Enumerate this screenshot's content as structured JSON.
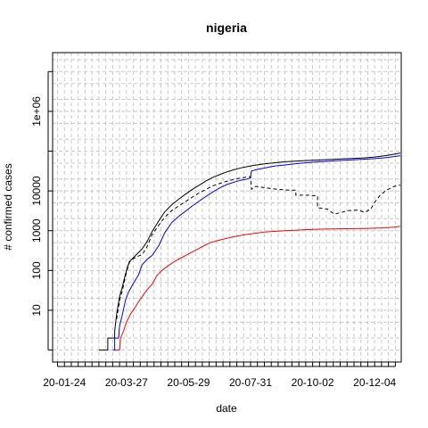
{
  "chart_data": {
    "type": "line",
    "title": "nigeria",
    "xlabel": "date",
    "ylabel": "# confirmed cases",
    "log_y": true,
    "grid": true,
    "x_ticks": [
      "20-01-24",
      "20-03-27",
      "20-05-29",
      "20-07-31",
      "20-10-02",
      "20-12-04"
    ],
    "y_ticks": [
      "10",
      "100",
      "1000",
      "10000",
      "1e+06"
    ],
    "xlim": [
      "2020-01-12",
      "2020-12-31"
    ],
    "ylim": [
      0.5,
      30000000
    ],
    "series": [
      {
        "color": "#000000",
        "linetype": "solid",
        "points": [
          [
            "2020-02-28",
            1
          ],
          [
            "2020-03-08",
            1
          ],
          [
            "2020-03-08",
            2
          ],
          [
            "2020-03-15",
            2
          ],
          [
            "2020-03-15",
            3
          ],
          [
            "2020-03-17",
            8
          ],
          [
            "2020-03-20",
            22
          ],
          [
            "2020-03-23",
            40
          ],
          [
            "2020-03-25",
            65
          ],
          [
            "2020-03-27",
            100
          ],
          [
            "2020-03-30",
            170
          ],
          [
            "2020-04-03",
            210
          ],
          [
            "2020-04-08",
            280
          ],
          [
            "2020-04-12",
            350
          ],
          [
            "2020-04-17",
            540
          ],
          [
            "2020-04-22",
            950
          ],
          [
            "2020-04-29",
            1800
          ],
          [
            "2020-05-05",
            3000
          ],
          [
            "2020-05-12",
            4500
          ],
          [
            "2020-05-19",
            6200
          ],
          [
            "2020-05-26",
            8300
          ],
          [
            "2020-06-02",
            11000
          ],
          [
            "2020-06-09",
            14000
          ],
          [
            "2020-06-16",
            18000
          ],
          [
            "2020-06-23",
            22000
          ],
          [
            "2020-06-30",
            26000
          ],
          [
            "2020-07-07",
            30000
          ],
          [
            "2020-07-14",
            34000
          ],
          [
            "2020-07-21",
            38000
          ],
          [
            "2020-07-28",
            41000
          ],
          [
            "2020-08-04",
            44000
          ],
          [
            "2020-08-14",
            48000
          ],
          [
            "2020-08-24",
            51000
          ],
          [
            "2020-09-04",
            54000
          ],
          [
            "2020-09-14",
            56000
          ],
          [
            "2020-09-24",
            58000
          ],
          [
            "2020-10-04",
            59500
          ],
          [
            "2020-10-14",
            61000
          ],
          [
            "2020-10-24",
            62500
          ],
          [
            "2020-11-04",
            64500
          ],
          [
            "2020-11-14",
            66000
          ],
          [
            "2020-11-24",
            68000
          ],
          [
            "2020-12-04",
            71000
          ],
          [
            "2020-12-14",
            76000
          ],
          [
            "2020-12-24",
            84000
          ],
          [
            "2020-12-30",
            90000
          ]
        ]
      },
      {
        "color": "#0000ff",
        "linetype": "solid",
        "points": [
          [
            "2020-03-13",
            1
          ],
          [
            "2020-03-15",
            1
          ],
          [
            "2020-03-15",
            2
          ],
          [
            "2020-03-19",
            2
          ],
          [
            "2020-03-20",
            4
          ],
          [
            "2020-03-23",
            8
          ],
          [
            "2020-03-26",
            18
          ],
          [
            "2020-03-29",
            28
          ],
          [
            "2020-04-03",
            48
          ],
          [
            "2020-04-08",
            75
          ],
          [
            "2020-04-12",
            140
          ],
          [
            "2020-04-17",
            190
          ],
          [
            "2020-04-22",
            240
          ],
          [
            "2020-04-29",
            430
          ],
          [
            "2020-05-05",
            900
          ],
          [
            "2020-05-12",
            1600
          ],
          [
            "2020-05-19",
            2300
          ],
          [
            "2020-05-26",
            3100
          ],
          [
            "2020-06-02",
            4200
          ],
          [
            "2020-06-09",
            5600
          ],
          [
            "2020-06-16",
            7300
          ],
          [
            "2020-06-23",
            9500
          ],
          [
            "2020-06-30",
            12000
          ],
          [
            "2020-07-07",
            14500
          ],
          [
            "2020-07-14",
            16500
          ],
          [
            "2020-07-21",
            18500
          ],
          [
            "2020-07-28",
            20000
          ],
          [
            "2020-07-31",
            21500
          ],
          [
            "2020-08-01",
            32000
          ],
          [
            "2020-08-08",
            35000
          ],
          [
            "2020-08-15",
            38000
          ],
          [
            "2020-08-24",
            42000
          ],
          [
            "2020-09-04",
            45000
          ],
          [
            "2020-09-14",
            48000
          ],
          [
            "2020-09-24",
            51000
          ],
          [
            "2020-10-04",
            53000
          ],
          [
            "2020-10-14",
            55000
          ],
          [
            "2020-10-24",
            57000
          ],
          [
            "2020-11-04",
            59000
          ],
          [
            "2020-11-14",
            61000
          ],
          [
            "2020-11-24",
            63000
          ],
          [
            "2020-12-04",
            65000
          ],
          [
            "2020-12-14",
            68000
          ],
          [
            "2020-12-24",
            73000
          ],
          [
            "2020-12-30",
            77000
          ]
        ]
      },
      {
        "color": "#ff0000",
        "linetype": "solid",
        "points": [
          [
            "2020-03-15",
            1
          ],
          [
            "2020-03-20",
            1
          ],
          [
            "2020-03-21",
            2
          ],
          [
            "2020-03-24",
            3
          ],
          [
            "2020-03-27",
            5
          ],
          [
            "2020-03-31",
            8
          ],
          [
            "2020-04-04",
            11
          ],
          [
            "2020-04-08",
            16
          ],
          [
            "2020-04-12",
            22
          ],
          [
            "2020-04-17",
            33
          ],
          [
            "2020-04-22",
            45
          ],
          [
            "2020-04-27",
            75
          ],
          [
            "2020-05-02",
            100
          ],
          [
            "2020-05-08",
            130
          ],
          [
            "2020-05-15",
            170
          ],
          [
            "2020-05-22",
            210
          ],
          [
            "2020-05-29",
            260
          ],
          [
            "2020-06-06",
            330
          ],
          [
            "2020-06-13",
            410
          ],
          [
            "2020-06-20",
            500
          ],
          [
            "2020-06-27",
            560
          ],
          [
            "2020-07-04",
            620
          ],
          [
            "2020-07-11",
            680
          ],
          [
            "2020-07-18",
            740
          ],
          [
            "2020-07-25",
            790
          ],
          [
            "2020-08-04",
            860
          ],
          [
            "2020-08-14",
            920
          ],
          [
            "2020-08-24",
            960
          ],
          [
            "2020-09-04",
            1000
          ],
          [
            "2020-09-14",
            1030
          ],
          [
            "2020-09-24",
            1060
          ],
          [
            "2020-10-04",
            1080
          ],
          [
            "2020-10-14",
            1100
          ],
          [
            "2020-10-24",
            1110
          ],
          [
            "2020-11-04",
            1120
          ],
          [
            "2020-11-14",
            1130
          ],
          [
            "2020-11-24",
            1140
          ],
          [
            "2020-12-04",
            1160
          ],
          [
            "2020-12-14",
            1180
          ],
          [
            "2020-12-24",
            1230
          ],
          [
            "2020-12-30",
            1290
          ]
        ]
      },
      {
        "color": "#000000",
        "linetype": "dashed",
        "points": [
          [
            "2020-03-17",
            6
          ],
          [
            "2020-03-20",
            18
          ],
          [
            "2020-03-23",
            32
          ],
          [
            "2020-03-25",
            55
          ],
          [
            "2020-03-27",
            90
          ],
          [
            "2020-03-30",
            160
          ],
          [
            "2020-04-03",
            200
          ],
          [
            "2020-04-08",
            230
          ],
          [
            "2020-04-12",
            250
          ],
          [
            "2020-04-17",
            400
          ],
          [
            "2020-04-22",
            800
          ],
          [
            "2020-04-29",
            1400
          ],
          [
            "2020-05-05",
            2200
          ],
          [
            "2020-05-12",
            3200
          ],
          [
            "2020-05-19",
            4200
          ],
          [
            "2020-05-26",
            5400
          ],
          [
            "2020-06-02",
            7000
          ],
          [
            "2020-06-09",
            9000
          ],
          [
            "2020-06-16",
            11000
          ],
          [
            "2020-06-23",
            13500
          ],
          [
            "2020-06-30",
            15500
          ],
          [
            "2020-07-07",
            17500
          ],
          [
            "2020-07-14",
            19500
          ],
          [
            "2020-07-21",
            21000
          ],
          [
            "2020-07-28",
            22500
          ],
          [
            "2020-07-31",
            23000
          ],
          [
            "2020-08-01",
            11000
          ],
          [
            "2020-08-05",
            13000
          ],
          [
            "2020-08-15",
            12000
          ],
          [
            "2020-08-27",
            11000
          ],
          [
            "2020-09-08",
            10500
          ],
          [
            "2020-09-15",
            10500
          ],
          [
            "2020-09-15",
            7800
          ],
          [
            "2020-09-27",
            7800
          ],
          [
            "2020-10-07",
            7500
          ],
          [
            "2020-10-07",
            3800
          ],
          [
            "2020-10-17",
            3500
          ],
          [
            "2020-10-24",
            2600
          ],
          [
            "2020-10-29",
            2800
          ],
          [
            "2020-11-07",
            3200
          ],
          [
            "2020-11-17",
            3300
          ],
          [
            "2020-11-24",
            2900
          ],
          [
            "2020-11-30",
            3500
          ],
          [
            "2020-12-04",
            5200
          ],
          [
            "2020-12-09",
            7500
          ],
          [
            "2020-12-16",
            10500
          ],
          [
            "2020-12-24",
            13000
          ],
          [
            "2020-12-30",
            14000
          ]
        ]
      }
    ]
  }
}
